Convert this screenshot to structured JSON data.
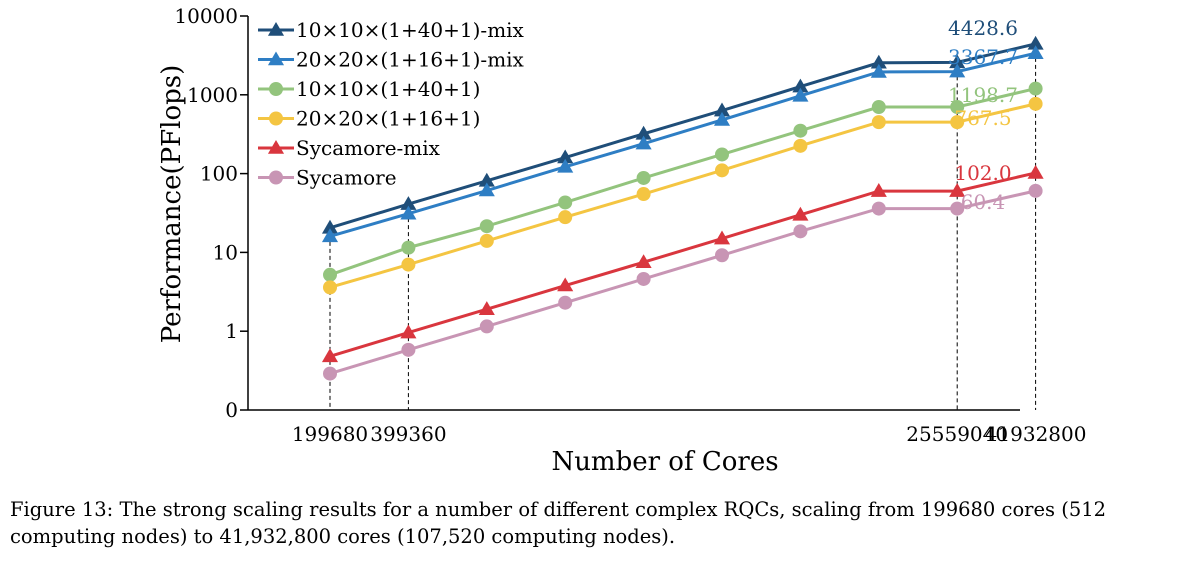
{
  "chart_data": {
    "type": "line",
    "xlabel": "Number of Cores",
    "ylabel": "Performance(PFlops)",
    "yscale": "log",
    "ylim": [
      0.1,
      10000
    ],
    "yticks": [
      {
        "value": 0.1,
        "label": "0"
      },
      {
        "value": 1,
        "label": "1"
      },
      {
        "value": 10,
        "label": "10"
      },
      {
        "value": 100,
        "label": "100"
      },
      {
        "value": 1000,
        "label": "1000"
      },
      {
        "value": 10000,
        "label": "10000"
      }
    ],
    "x": [
      1,
      2,
      3,
      4,
      5,
      6,
      7,
      8,
      9,
      10
    ],
    "xticks": [
      {
        "x": 1,
        "label": "199680"
      },
      {
        "x": 2,
        "label": "399360"
      },
      {
        "x": 9,
        "label": "25559040"
      },
      {
        "x": 10,
        "label": "41932800"
      }
    ],
    "dashed_guides_at_x": [
      1,
      2,
      9,
      10
    ],
    "legend_position": "top-left",
    "grid": false,
    "series": [
      {
        "name": "10×10×(1+40+1)-mix",
        "color": "#1f4e79",
        "marker": "triangle",
        "values": [
          20.5,
          41,
          81,
          160,
          320,
          630,
          1270,
          2550,
          2580,
          4428.6
        ],
        "end_label": "4428.6"
      },
      {
        "name": "20×20×(1+16+1)-mix",
        "color": "#2e7ec4",
        "marker": "triangle",
        "values": [
          16,
          31,
          61,
          122,
          240,
          480,
          970,
          1950,
          1970,
          3367.7
        ],
        "end_label": "3367.7"
      },
      {
        "name": "10×10×(1+40+1)",
        "color": "#93c47d",
        "marker": "circle",
        "values": [
          5.2,
          11.5,
          21.5,
          43,
          88,
          175,
          350,
          700,
          700,
          1198.7
        ],
        "end_label": "1198.7"
      },
      {
        "name": "20×20×(1+16+1)",
        "color": "#f4c542",
        "marker": "circle",
        "values": [
          3.6,
          7,
          14,
          28,
          55,
          110,
          225,
          450,
          450,
          767.5
        ],
        "end_label": "767.5"
      },
      {
        "name": "Sycamore-mix",
        "color": "#d9363e",
        "marker": "triangle",
        "values": [
          0.48,
          0.96,
          1.9,
          3.8,
          7.5,
          15,
          30,
          60,
          60,
          102.0
        ],
        "end_label": "102.0"
      },
      {
        "name": "Sycamore",
        "color": "#c895b4",
        "marker": "circle",
        "values": [
          0.29,
          0.58,
          1.15,
          2.3,
          4.6,
          9.2,
          18.5,
          36,
          36,
          60.4
        ],
        "end_label": "60.4"
      }
    ]
  },
  "caption": "Figure 13: The strong scaling results for a number of different complex RQCs, scaling from 199680 cores (512 computing nodes) to 41,932,800 cores (107,520 computing nodes)."
}
